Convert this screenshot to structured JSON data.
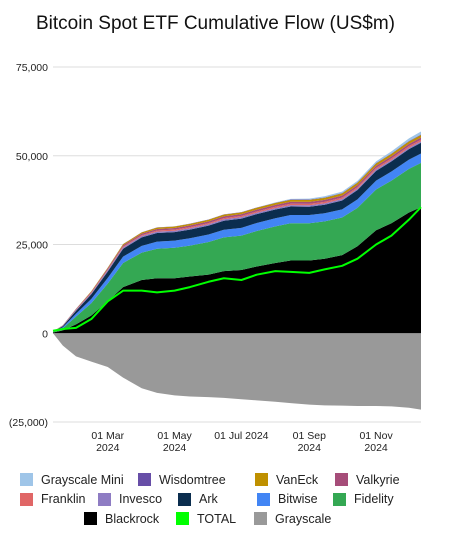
{
  "chart_data": {
    "type": "area",
    "title": "Bitcoin Spot ETF Cumulative Flow (US$m)",
    "xlabel": "",
    "ylabel": "",
    "ylim": [
      -25000,
      75000
    ],
    "y_ticks": [
      75000,
      50000,
      25000,
      0,
      -25000
    ],
    "y_tick_labels": [
      "75,000",
      "50,000",
      "25,000",
      "0",
      "(25,000)"
    ],
    "x_tick_labels": [
      [
        "01 Mar",
        "2024"
      ],
      [
        "01 May",
        "2024"
      ],
      [
        "01 Jul 2024"
      ],
      [
        "01 Sep",
        "2024"
      ],
      [
        "01 Nov",
        "2024"
      ]
    ],
    "x_tick_dates": [
      "2024-03-01",
      "2024-05-01",
      "2024-07-01",
      "2024-09-01",
      "2024-11-01"
    ],
    "grid": true,
    "legend_position": "bottom",
    "x": [
      "2024-01-11",
      "2024-01-20",
      "2024-02-01",
      "2024-02-15",
      "2024-03-01",
      "2024-03-15",
      "2024-04-01",
      "2024-04-15",
      "2024-05-01",
      "2024-05-15",
      "2024-06-01",
      "2024-06-15",
      "2024-07-01",
      "2024-07-15",
      "2024-08-01",
      "2024-08-15",
      "2024-09-01",
      "2024-09-15",
      "2024-10-01",
      "2024-10-15",
      "2024-11-01",
      "2024-11-15",
      "2024-12-01",
      "2024-12-12"
    ],
    "stack_order": [
      "Blackrock",
      "Fidelity",
      "Bitwise",
      "Ark",
      "Invesco",
      "Franklin",
      "Valkyrie",
      "VanEck",
      "Wisdomtree",
      "Grayscale Mini"
    ],
    "series": [
      {
        "name": "Blackrock",
        "color": "#000000",
        "values": [
          200,
          800,
          2500,
          5000,
          9000,
          13000,
          15000,
          15500,
          15500,
          16000,
          16500,
          17500,
          17800,
          18800,
          19800,
          20500,
          20500,
          21000,
          22000,
          24500,
          29000,
          31000,
          34000,
          35500
        ]
      },
      {
        "name": "Fidelity",
        "color": "#34a853",
        "values": [
          150,
          600,
          2200,
          3500,
          5000,
          6800,
          7700,
          8300,
          8600,
          8700,
          9200,
          9500,
          9700,
          10000,
          10300,
          10500,
          10500,
          10500,
          10600,
          10800,
          11500,
          12000,
          12300,
          12500
        ]
      },
      {
        "name": "Bitwise",
        "color": "#4285f4",
        "values": [
          50,
          300,
          800,
          1200,
          1600,
          1800,
          1900,
          2000,
          2000,
          2050,
          2100,
          2150,
          2200,
          2250,
          2300,
          2300,
          2300,
          2300,
          2300,
          2400,
          2500,
          2550,
          2600,
          2650
        ]
      },
      {
        "name": "Ark",
        "color": "#0b2d4e",
        "values": [
          30,
          300,
          800,
          1300,
          1800,
          2200,
          2400,
          2450,
          2400,
          2450,
          2500,
          2550,
          2600,
          2500,
          2450,
          2400,
          2350,
          2400,
          2500,
          2650,
          2750,
          2850,
          2950,
          3000
        ]
      },
      {
        "name": "Invesco",
        "color": "#8e7cc3",
        "values": [
          10,
          100,
          200,
          280,
          330,
          370,
          380,
          390,
          390,
          390,
          395,
          400,
          400,
          400,
          400,
          400,
          400,
          400,
          400,
          405,
          410,
          410,
          410,
          410
        ]
      },
      {
        "name": "Franklin",
        "color": "#e06666",
        "values": [
          10,
          40,
          100,
          150,
          200,
          240,
          270,
          290,
          300,
          310,
          320,
          340,
          350,
          360,
          370,
          380,
          390,
          400,
          410,
          420,
          430,
          440,
          450,
          460
        ]
      },
      {
        "name": "Valkyrie",
        "color": "#a64d79",
        "values": [
          20,
          90,
          180,
          260,
          330,
          380,
          420,
          450,
          470,
          490,
          500,
          510,
          520,
          530,
          540,
          550,
          560,
          570,
          580,
          590,
          600,
          610,
          620,
          630
        ]
      },
      {
        "name": "VanEck",
        "color": "#bf9000",
        "values": [
          10,
          40,
          100,
          170,
          240,
          300,
          350,
          380,
          400,
          420,
          440,
          460,
          480,
          500,
          520,
          540,
          560,
          580,
          600,
          620,
          640,
          660,
          680,
          700
        ]
      },
      {
        "name": "Wisdomtree",
        "color": "#674ea7",
        "values": [
          0,
          5,
          10,
          15,
          25,
          35,
          45,
          55,
          60,
          65,
          70,
          75,
          80,
          85,
          90,
          95,
          100,
          105,
          110,
          115,
          120,
          125,
          130,
          140
        ]
      },
      {
        "name": "Grayscale Mini",
        "color": "#9fc5e8",
        "values": [
          0,
          0,
          0,
          0,
          0,
          0,
          0,
          0,
          0,
          0,
          0,
          0,
          0,
          0,
          100,
          200,
          280,
          330,
          380,
          430,
          480,
          600,
          750,
          850
        ]
      },
      {
        "name": "Grayscale",
        "color": "#999999",
        "values": [
          0,
          -3500,
          -6500,
          -8000,
          -9500,
          -12500,
          -15500,
          -16800,
          -17500,
          -17800,
          -18000,
          -18200,
          -18600,
          -18900,
          -19300,
          -19700,
          -20100,
          -20300,
          -20400,
          -20500,
          -20500,
          -20600,
          -21000,
          -21500
        ]
      },
      {
        "name": "TOTAL",
        "color": "#00ff00",
        "values": [
          700,
          1200,
          1500,
          4000,
          9000,
          12000,
          12000,
          11500,
          12000,
          13000,
          14500,
          15500,
          15000,
          16500,
          17500,
          17300,
          17000,
          18000,
          19000,
          21000,
          25000,
          27500,
          32000,
          35500
        ]
      }
    ]
  },
  "legend": {
    "rows": [
      [
        {
          "label": "Grayscale Mini",
          "color": "#9fc5e8"
        },
        {
          "label": "Wisdomtree",
          "color": "#674ea7"
        },
        {
          "label": "VanEck",
          "color": "#bf9000"
        },
        {
          "label": "Valkyrie",
          "color": "#a64d79"
        }
      ],
      [
        {
          "label": "Franklin",
          "color": "#e06666"
        },
        {
          "label": "Invesco",
          "color": "#8e7cc3"
        },
        {
          "label": "Ark",
          "color": "#0b2d4e"
        },
        {
          "label": "Bitwise",
          "color": "#4285f4"
        },
        {
          "label": "Fidelity",
          "color": "#34a853"
        }
      ],
      [
        {
          "label": "Blackrock",
          "color": "#000000"
        },
        {
          "label": "TOTAL",
          "color": "#00ff00"
        },
        {
          "label": "Grayscale",
          "color": "#999999"
        }
      ]
    ]
  }
}
